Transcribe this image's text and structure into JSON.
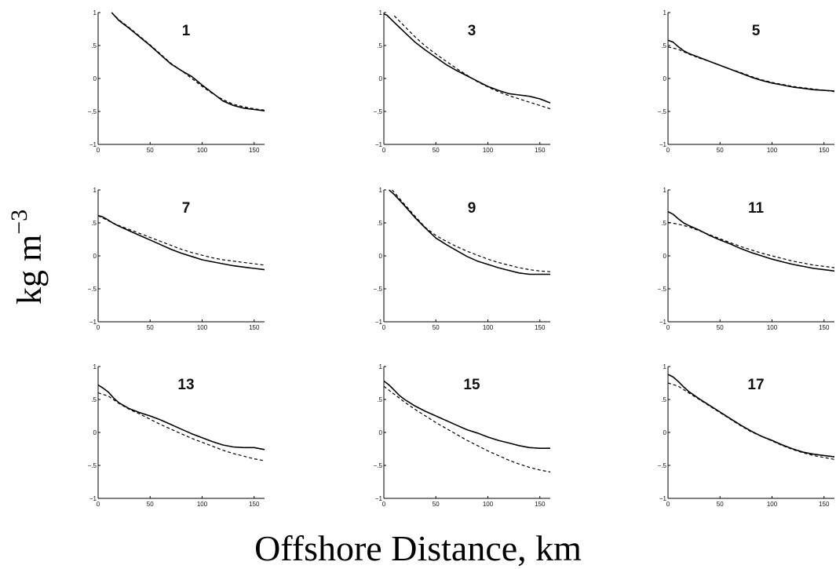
{
  "figure": {
    "ylabel_text": "kg m",
    "ylabel_exp": "−3",
    "xlabel": "Offshore Distance, km"
  },
  "style": {
    "line_color": "#000000",
    "background": "#ffffff"
  },
  "chart_data": [
    {
      "type": "line",
      "title": "1",
      "xlim": [
        0,
        160
      ],
      "ylim": [
        -1,
        1
      ],
      "xticks": [
        0,
        50,
        100,
        150
      ],
      "yticks": [
        -1,
        -0.5,
        0,
        0.5,
        1
      ],
      "series": [
        {
          "style": "solid",
          "x": [
            13,
            20,
            30,
            40,
            50,
            60,
            70,
            80,
            90,
            100,
            110,
            120,
            130,
            140,
            150,
            160
          ],
          "y": [
            1.0,
            0.88,
            0.76,
            0.63,
            0.5,
            0.36,
            0.22,
            0.12,
            0.03,
            -0.1,
            -0.22,
            -0.34,
            -0.41,
            -0.45,
            -0.47,
            -0.49
          ]
        },
        {
          "style": "dashed",
          "x": [
            13,
            20,
            30,
            40,
            50,
            60,
            70,
            80,
            90,
            100,
            110,
            120,
            130,
            140,
            150,
            160
          ],
          "y": [
            1.0,
            0.89,
            0.77,
            0.64,
            0.51,
            0.37,
            0.23,
            0.12,
            0.0,
            -0.12,
            -0.23,
            -0.32,
            -0.39,
            -0.43,
            -0.46,
            -0.48
          ]
        }
      ]
    },
    {
      "type": "line",
      "title": "3",
      "xlim": [
        0,
        160
      ],
      "ylim": [
        -1,
        1
      ],
      "xticks": [
        0,
        50,
        100,
        150
      ],
      "yticks": [
        -1,
        -0.5,
        0,
        0.5,
        1
      ],
      "series": [
        {
          "style": "solid",
          "x": [
            0,
            3,
            10,
            20,
            30,
            40,
            50,
            60,
            70,
            80,
            90,
            100,
            110,
            120,
            130,
            140,
            150,
            160
          ],
          "y": [
            0.98,
            0.96,
            0.85,
            0.7,
            0.55,
            0.43,
            0.32,
            0.21,
            0.12,
            0.04,
            -0.04,
            -0.12,
            -0.18,
            -0.23,
            -0.25,
            -0.27,
            -0.31,
            -0.37
          ]
        },
        {
          "style": "dashed",
          "x": [
            10,
            20,
            30,
            40,
            50,
            60,
            70,
            80,
            90,
            100,
            110,
            120,
            130,
            140,
            150,
            160
          ],
          "y": [
            0.95,
            0.79,
            0.63,
            0.49,
            0.37,
            0.26,
            0.15,
            0.05,
            -0.05,
            -0.13,
            -0.2,
            -0.26,
            -0.31,
            -0.36,
            -0.41,
            -0.46
          ]
        }
      ]
    },
    {
      "type": "line",
      "title": "5",
      "xlim": [
        0,
        160
      ],
      "ylim": [
        -1,
        1
      ],
      "xticks": [
        0,
        50,
        100,
        150
      ],
      "yticks": [
        -1,
        -0.5,
        0,
        0.5,
        1
      ],
      "series": [
        {
          "style": "solid",
          "x": [
            0,
            5,
            10,
            15,
            20,
            30,
            40,
            50,
            60,
            70,
            80,
            90,
            100,
            110,
            120,
            130,
            140,
            150,
            160
          ],
          "y": [
            0.58,
            0.55,
            0.48,
            0.42,
            0.38,
            0.32,
            0.26,
            0.2,
            0.14,
            0.08,
            0.02,
            -0.03,
            -0.07,
            -0.1,
            -0.13,
            -0.15,
            -0.17,
            -0.18,
            -0.19
          ]
        },
        {
          "style": "dashed",
          "x": [
            0,
            10,
            20,
            30,
            40,
            50,
            60,
            70,
            80,
            90,
            100,
            110,
            120,
            130,
            140,
            150,
            160
          ],
          "y": [
            0.48,
            0.44,
            0.37,
            0.31,
            0.26,
            0.2,
            0.14,
            0.09,
            0.03,
            -0.02,
            -0.06,
            -0.09,
            -0.12,
            -0.14,
            -0.16,
            -0.18,
            -0.2
          ]
        }
      ]
    },
    {
      "type": "line",
      "title": "7",
      "xlim": [
        0,
        160
      ],
      "ylim": [
        -1,
        1
      ],
      "xticks": [
        0,
        50,
        100,
        150
      ],
      "yticks": [
        -1,
        -0.5,
        0,
        0.5,
        1
      ],
      "series": [
        {
          "style": "solid",
          "x": [
            0,
            3,
            8,
            15,
            20,
            30,
            40,
            50,
            60,
            70,
            80,
            90,
            100,
            110,
            120,
            130,
            140,
            150,
            160
          ],
          "y": [
            0.61,
            0.6,
            0.56,
            0.49,
            0.45,
            0.38,
            0.31,
            0.24,
            0.17,
            0.1,
            0.04,
            -0.01,
            -0.06,
            -0.09,
            -0.12,
            -0.15,
            -0.17,
            -0.19,
            -0.21
          ]
        },
        {
          "style": "dashed",
          "x": [
            0,
            10,
            20,
            30,
            40,
            50,
            60,
            70,
            80,
            90,
            100,
            110,
            120,
            130,
            140,
            150,
            160
          ],
          "y": [
            0.61,
            0.53,
            0.46,
            0.4,
            0.34,
            0.28,
            0.22,
            0.16,
            0.1,
            0.05,
            0.01,
            -0.03,
            -0.06,
            -0.08,
            -0.1,
            -0.12,
            -0.14
          ]
        }
      ]
    },
    {
      "type": "line",
      "title": "9",
      "xlim": [
        0,
        160
      ],
      "ylim": [
        -1,
        1
      ],
      "xticks": [
        0,
        50,
        100,
        150
      ],
      "yticks": [
        -1,
        -0.5,
        0,
        0.5,
        1
      ],
      "series": [
        {
          "style": "solid",
          "x": [
            5,
            10,
            20,
            30,
            40,
            50,
            60,
            70,
            80,
            90,
            100,
            110,
            120,
            130,
            140,
            150,
            160
          ],
          "y": [
            1.0,
            0.93,
            0.76,
            0.58,
            0.42,
            0.27,
            0.17,
            0.08,
            -0.01,
            -0.08,
            -0.13,
            -0.18,
            -0.22,
            -0.26,
            -0.28,
            -0.28,
            -0.28
          ]
        },
        {
          "style": "dashed",
          "x": [
            8,
            15,
            20,
            30,
            40,
            50,
            60,
            70,
            80,
            90,
            100,
            110,
            120,
            130,
            140,
            150,
            160
          ],
          "y": [
            1.0,
            0.87,
            0.78,
            0.6,
            0.43,
            0.31,
            0.22,
            0.14,
            0.07,
            0.01,
            -0.05,
            -0.1,
            -0.14,
            -0.18,
            -0.21,
            -0.23,
            -0.24
          ]
        }
      ]
    },
    {
      "type": "line",
      "title": "11",
      "xlim": [
        0,
        160
      ],
      "ylim": [
        -1,
        1
      ],
      "xticks": [
        0,
        50,
        100,
        150
      ],
      "yticks": [
        -1,
        -0.5,
        0,
        0.5,
        1
      ],
      "series": [
        {
          "style": "solid",
          "x": [
            0,
            5,
            10,
            15,
            20,
            30,
            40,
            50,
            60,
            70,
            80,
            90,
            100,
            110,
            120,
            130,
            140,
            150,
            160
          ],
          "y": [
            0.67,
            0.63,
            0.56,
            0.5,
            0.46,
            0.39,
            0.31,
            0.24,
            0.18,
            0.11,
            0.05,
            0.0,
            -0.05,
            -0.09,
            -0.13,
            -0.16,
            -0.19,
            -0.21,
            -0.23
          ]
        },
        {
          "style": "dashed",
          "x": [
            0,
            10,
            20,
            30,
            40,
            50,
            60,
            70,
            80,
            90,
            100,
            110,
            120,
            130,
            140,
            150,
            160
          ],
          "y": [
            0.51,
            0.48,
            0.44,
            0.38,
            0.32,
            0.26,
            0.2,
            0.14,
            0.09,
            0.04,
            0.0,
            -0.04,
            -0.08,
            -0.11,
            -0.14,
            -0.16,
            -0.18
          ]
        }
      ]
    },
    {
      "type": "line",
      "title": "13",
      "xlim": [
        0,
        160
      ],
      "ylim": [
        -1,
        1
      ],
      "xticks": [
        0,
        50,
        100,
        150
      ],
      "yticks": [
        -1,
        -0.5,
        0,
        0.5,
        1
      ],
      "series": [
        {
          "style": "solid",
          "x": [
            0,
            5,
            10,
            15,
            20,
            30,
            40,
            50,
            60,
            70,
            80,
            90,
            100,
            110,
            120,
            130,
            140,
            150,
            160
          ],
          "y": [
            0.72,
            0.67,
            0.61,
            0.52,
            0.45,
            0.36,
            0.3,
            0.25,
            0.19,
            0.12,
            0.05,
            -0.02,
            -0.08,
            -0.14,
            -0.19,
            -0.22,
            -0.23,
            -0.23,
            -0.26
          ]
        },
        {
          "style": "dashed",
          "x": [
            0,
            10,
            20,
            30,
            40,
            50,
            60,
            70,
            80,
            90,
            100,
            110,
            120,
            130,
            140,
            150,
            160
          ],
          "y": [
            0.6,
            0.55,
            0.44,
            0.35,
            0.28,
            0.2,
            0.12,
            0.05,
            -0.02,
            -0.09,
            -0.15,
            -0.21,
            -0.27,
            -0.32,
            -0.36,
            -0.4,
            -0.43
          ]
        }
      ]
    },
    {
      "type": "line",
      "title": "15",
      "xlim": [
        0,
        160
      ],
      "ylim": [
        -1,
        1
      ],
      "xticks": [
        0,
        50,
        100,
        150
      ],
      "yticks": [
        -1,
        -0.5,
        0,
        0.5,
        1
      ],
      "series": [
        {
          "style": "solid",
          "x": [
            0,
            5,
            10,
            15,
            20,
            30,
            40,
            50,
            60,
            70,
            80,
            90,
            100,
            110,
            120,
            130,
            140,
            150,
            160
          ],
          "y": [
            0.78,
            0.72,
            0.64,
            0.56,
            0.5,
            0.4,
            0.32,
            0.25,
            0.18,
            0.11,
            0.04,
            -0.01,
            -0.07,
            -0.12,
            -0.16,
            -0.2,
            -0.23,
            -0.24,
            -0.24
          ]
        },
        {
          "style": "dashed",
          "x": [
            0,
            10,
            20,
            30,
            40,
            50,
            60,
            70,
            80,
            90,
            100,
            110,
            120,
            130,
            140,
            150,
            160
          ],
          "y": [
            0.7,
            0.58,
            0.46,
            0.35,
            0.25,
            0.15,
            0.06,
            -0.03,
            -0.12,
            -0.2,
            -0.28,
            -0.35,
            -0.42,
            -0.48,
            -0.53,
            -0.57,
            -0.6
          ]
        }
      ]
    },
    {
      "type": "line",
      "title": "17",
      "xlim": [
        0,
        160
      ],
      "ylim": [
        -1,
        1
      ],
      "xticks": [
        0,
        50,
        100,
        150
      ],
      "yticks": [
        -1,
        -0.5,
        0,
        0.5,
        1
      ],
      "series": [
        {
          "style": "solid",
          "x": [
            0,
            5,
            10,
            15,
            20,
            30,
            40,
            50,
            60,
            70,
            80,
            90,
            100,
            110,
            120,
            130,
            140,
            150,
            160
          ],
          "y": [
            0.88,
            0.84,
            0.77,
            0.69,
            0.62,
            0.51,
            0.41,
            0.31,
            0.21,
            0.11,
            0.02,
            -0.06,
            -0.12,
            -0.19,
            -0.25,
            -0.3,
            -0.33,
            -0.35,
            -0.37
          ]
        },
        {
          "style": "dashed",
          "x": [
            0,
            10,
            20,
            30,
            40,
            50,
            60,
            70,
            80,
            90,
            100,
            110,
            120,
            130,
            140,
            150,
            160
          ],
          "y": [
            0.75,
            0.7,
            0.6,
            0.5,
            0.4,
            0.3,
            0.2,
            0.1,
            0.01,
            -0.06,
            -0.13,
            -0.2,
            -0.26,
            -0.31,
            -0.35,
            -0.38,
            -0.41
          ]
        }
      ]
    }
  ]
}
